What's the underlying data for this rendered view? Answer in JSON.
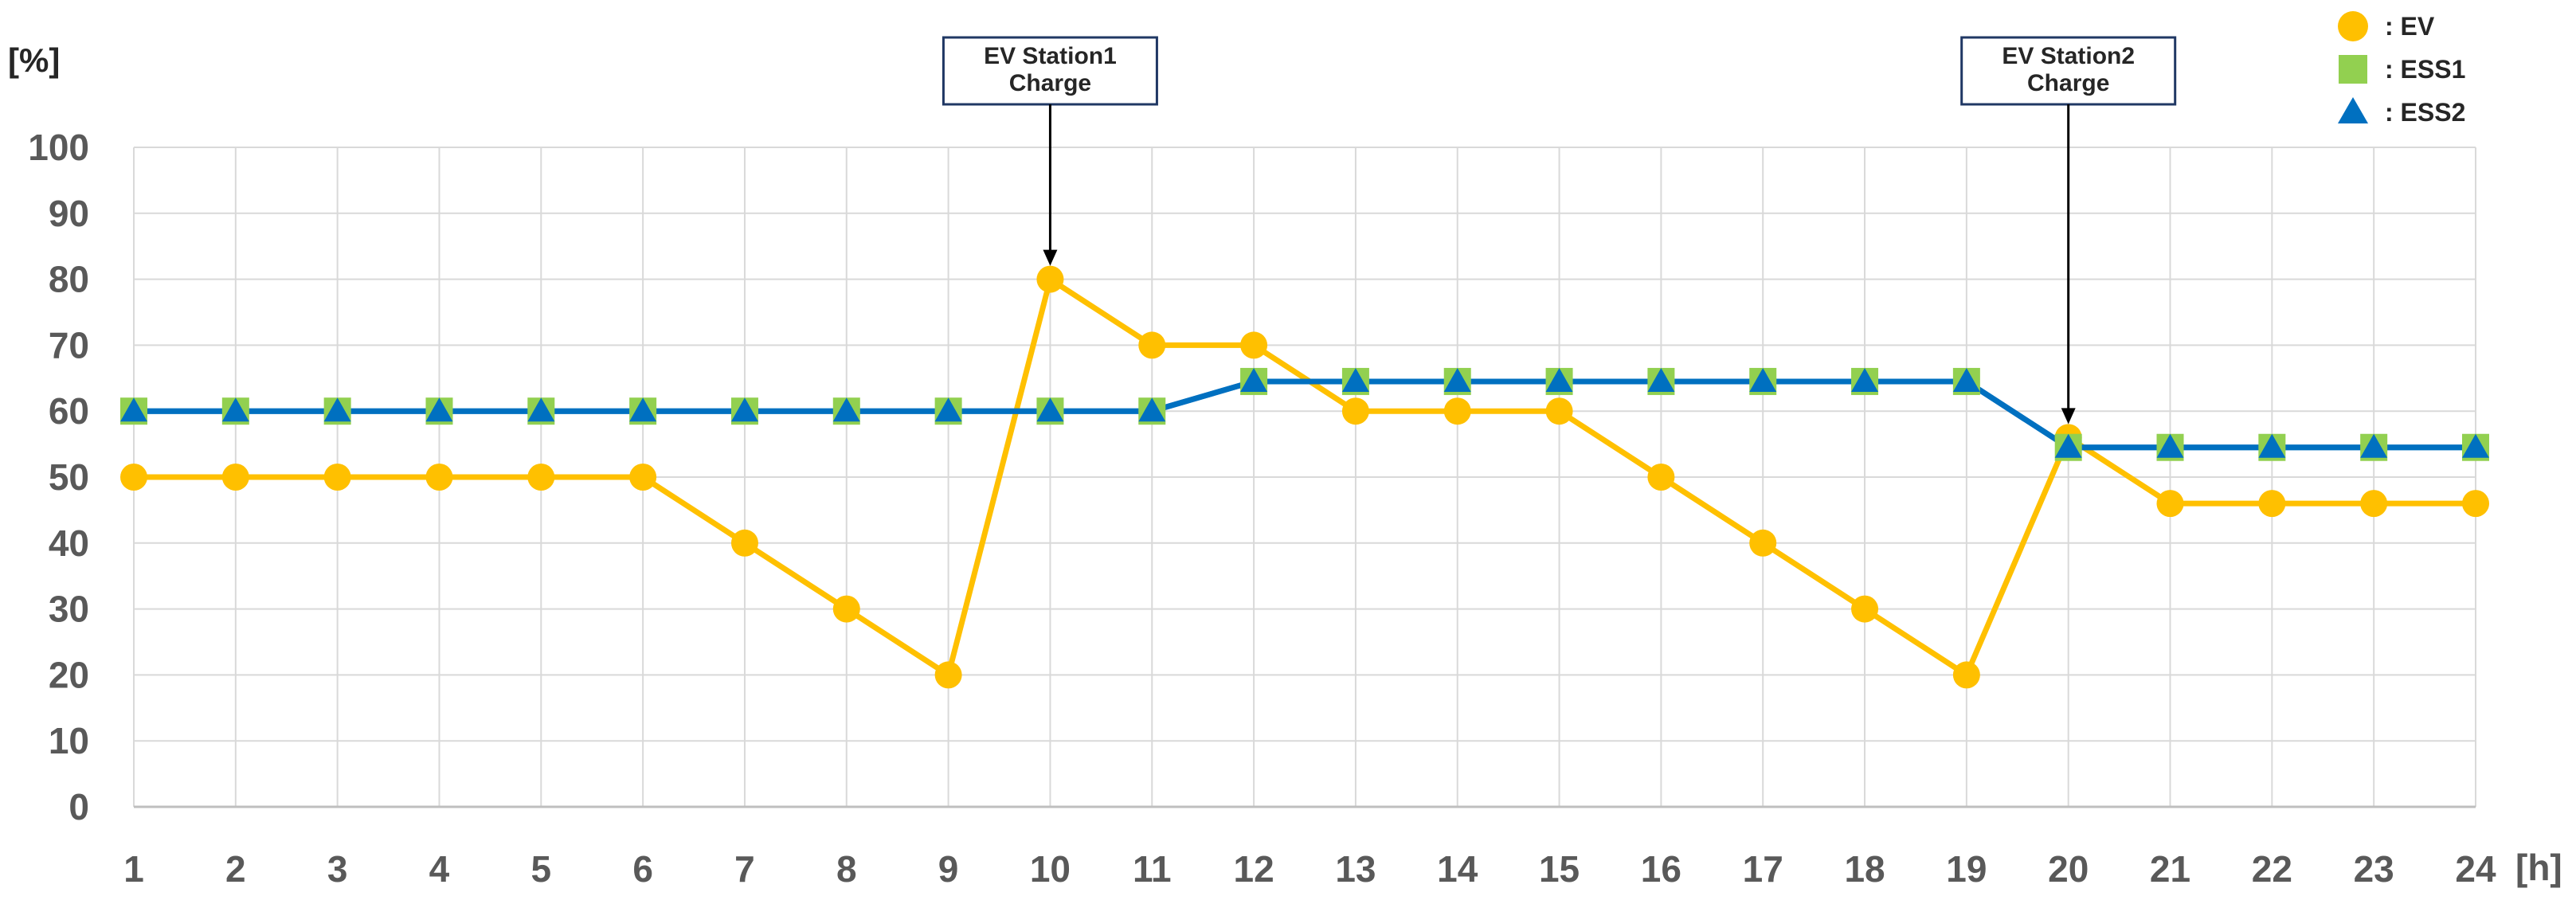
{
  "chart_data": {
    "type": "line",
    "categories": [
      "1",
      "2",
      "3",
      "4",
      "5",
      "6",
      "7",
      "8",
      "9",
      "10",
      "11",
      "12",
      "13",
      "14",
      "15",
      "16",
      "17",
      "18",
      "19",
      "20",
      "21",
      "22",
      "23",
      "24"
    ],
    "xlabel": "[h]",
    "ylabel": "[%]",
    "ylim": [
      0,
      100
    ],
    "yticks": [
      "0",
      "10",
      "20",
      "30",
      "40",
      "50",
      "60",
      "70",
      "80",
      "90",
      "100"
    ],
    "grid": true,
    "legend_position": "top-right",
    "series": [
      {
        "name": "EV",
        "marker": "circle",
        "color": "#FFC000",
        "line_color": "#FFC000",
        "values": [
          50,
          50,
          50,
          50,
          50,
          50,
          40,
          30,
          20,
          80,
          70,
          70,
          60,
          60,
          60,
          50,
          40,
          30,
          20,
          56,
          46,
          46,
          46,
          46
        ]
      },
      {
        "name": "ESS1",
        "marker": "square",
        "color": "#92D050",
        "line_color": "#0070C0",
        "values": [
          60,
          60,
          60,
          60,
          60,
          60,
          60,
          60,
          60,
          60,
          60,
          64.5,
          64.5,
          64.5,
          64.5,
          64.5,
          64.5,
          64.5,
          64.5,
          54.5,
          54.5,
          54.5,
          54.5,
          54.5
        ]
      },
      {
        "name": "ESS2",
        "marker": "triangle",
        "color": "#0070C0",
        "line_color": "#0070C0",
        "values": [
          60,
          60,
          60,
          60,
          60,
          60,
          60,
          60,
          60,
          60,
          60,
          64.5,
          64.5,
          64.5,
          64.5,
          64.5,
          64.5,
          64.5,
          64.5,
          54.5,
          54.5,
          54.5,
          54.5,
          54.5
        ]
      }
    ],
    "legend_labels": [
      ": EV",
      ": ESS1",
      ": ESS2"
    ],
    "annotations": [
      {
        "lines": [
          "EV Station1",
          "Charge"
        ],
        "x": "10",
        "y": 80
      },
      {
        "lines": [
          "EV Station2",
          "Charge"
        ],
        "x": "20",
        "y": 56
      }
    ]
  }
}
